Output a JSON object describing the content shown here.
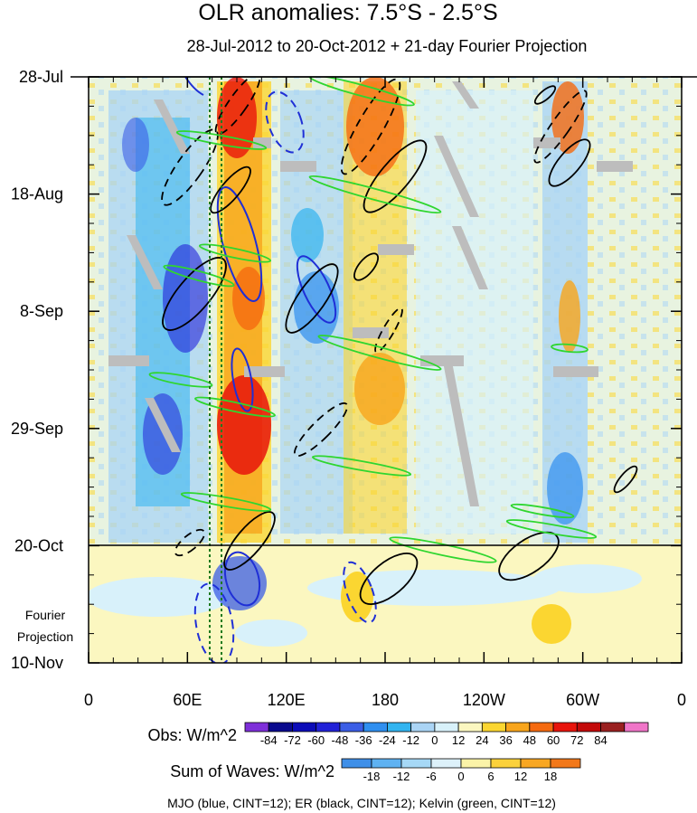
{
  "chart_data": {
    "type": "heatmap",
    "title": "OLR anomalies: 7.5°S - 2.5°S",
    "subtitle": "28-Jul-2012 to 20-Oct-2012 + 21-day Fourier Projection",
    "x_ticks": [
      {
        "label": "0",
        "lon": 0
      },
      {
        "label": "60E",
        "lon": 60
      },
      {
        "label": "120E",
        "lon": 120
      },
      {
        "label": "180",
        "lon": 180
      },
      {
        "label": "120W",
        "lon": 240
      },
      {
        "label": "60W",
        "lon": 300
      },
      {
        "label": "0",
        "lon": 360
      }
    ],
    "xlim": [
      0,
      360
    ],
    "y_ticks": [
      {
        "label": "28-Jul",
        "day": 0
      },
      {
        "label": "18-Aug",
        "day": 21
      },
      {
        "label": "8-Sep",
        "day": 42
      },
      {
        "label": "29-Sep",
        "day": 63
      },
      {
        "label": "20-Oct",
        "day": 84
      },
      {
        "label": "10-Nov",
        "day": 105
      }
    ],
    "ylim_days": [
      0,
      105
    ],
    "projection_start_day": 84,
    "projection_label": [
      "Fourier",
      "Projection"
    ],
    "mjo_phase_lines_lon": [
      72,
      80
    ],
    "obs_colorbar": {
      "label": "Obs: W/m^2",
      "levels": [
        -84,
        -72,
        -60,
        -48,
        -36,
        -24,
        -12,
        0,
        12,
        24,
        36,
        48,
        60,
        72,
        84
      ],
      "colors": [
        "#7e2fd9",
        "#0a0a8e",
        "#0c0cb8",
        "#2222d8",
        "#3b5ee6",
        "#2f8ff0",
        "#32b4f0",
        "#aad4f5",
        "#d8f1fa",
        "#fbf7c0",
        "#fbd631",
        "#f8a51c",
        "#f56a10",
        "#e8140c",
        "#c30a0a",
        "#9a2020",
        "#f075c8"
      ]
    },
    "waves_colorbar": {
      "label": "Sum of Waves: W/m^2",
      "levels": [
        -18,
        -12,
        -6,
        0,
        6,
        12,
        18
      ],
      "colors": [
        "#3f8fe8",
        "#5fb2f2",
        "#a6d8f6",
        "#ddf1fa",
        "#fbf3a8",
        "#fbd13b",
        "#f8a723",
        "#f2781a"
      ]
    },
    "contours": [
      {
        "wave": "MJO",
        "color": "blue",
        "cint": 12
      },
      {
        "wave": "ER",
        "color": "black",
        "cint": 12
      },
      {
        "wave": "Kelvin",
        "color": "green",
        "cint": 12
      }
    ],
    "footer": "MJO (blue, CINT=12); ER (black, CINT=12); Kelvin (green, CINT=12)",
    "colors": {
      "mjo": "#1f2fd6",
      "er": "#000000",
      "kelvin": "#2fd62f",
      "phase_line": "#1f7a1f",
      "missing": "#bdbdbd"
    }
  }
}
